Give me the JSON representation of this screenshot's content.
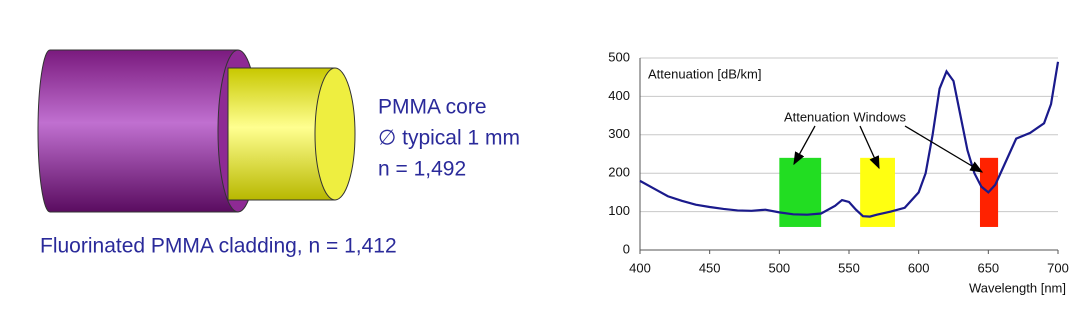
{
  "diagram": {
    "core_label": "PMMA core",
    "core_diameter": "∅ typical 1 mm",
    "core_index": "n = 1,492",
    "cladding_label": "Fluorinated PMMA cladding, n = 1,412"
  },
  "chart_data": {
    "type": "line",
    "ylabel": "Attenuation [dB/km]",
    "xlabel": "Wavelength [nm]",
    "annotation": "Attenuation Windows",
    "xlim": [
      400,
      700
    ],
    "xticks": [
      400,
      450,
      500,
      550,
      600,
      650,
      700
    ],
    "ylim": [
      0,
      500
    ],
    "yticks": [
      0,
      100,
      200,
      300,
      400,
      500
    ],
    "grid": true,
    "series": [
      {
        "color": "#1a1a8c",
        "x": [
          400,
          410,
          420,
          430,
          440,
          450,
          460,
          470,
          480,
          490,
          500,
          510,
          520,
          530,
          540,
          545,
          550,
          555,
          560,
          565,
          570,
          580,
          590,
          600,
          605,
          610,
          615,
          620,
          625,
          630,
          635,
          640,
          645,
          650,
          655,
          660,
          665,
          670,
          680,
          690,
          695,
          700
        ],
        "values": [
          180,
          160,
          140,
          128,
          118,
          112,
          107,
          103,
          102,
          105,
          98,
          93,
          92,
          95,
          115,
          130,
          125,
          105,
          88,
          87,
          92,
          100,
          110,
          150,
          200,
          300,
          420,
          465,
          440,
          350,
          260,
          200,
          165,
          150,
          170,
          210,
          250,
          290,
          305,
          330,
          380,
          490
        ]
      }
    ],
    "windows": [
      {
        "color": "#22dd22",
        "x": [
          500,
          530
        ],
        "y": [
          60,
          240
        ]
      },
      {
        "color": "#ffff11",
        "x": [
          558,
          583
        ],
        "y": [
          60,
          240
        ]
      },
      {
        "color": "#ff2200",
        "x": [
          644,
          657
        ],
        "y": [
          60,
          240
        ]
      }
    ]
  }
}
